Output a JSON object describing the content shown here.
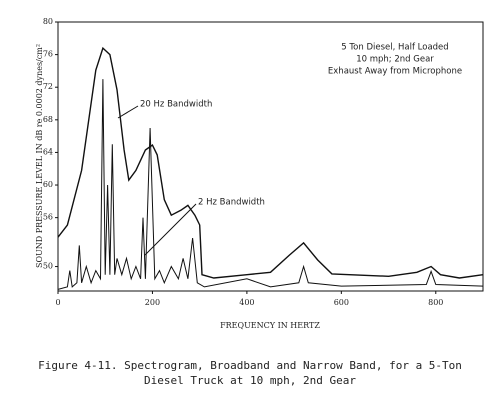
{
  "chart_data": {
    "type": "line",
    "title": "Figure 4-11.  Spectrogram, Broadband and Narrow Band, for a 5-Ton",
    "subtitle": "Diesel Truck at 10 mph, 2nd Gear",
    "x_label": "FREQUENCY IN HERTZ",
    "y_label": "SOUND PRESSURE LEVEL IN dB re 0.0002 dynes/cm²",
    "annotations": [
      "5 Ton Diesel, Half Loaded",
      "10 mph; 2nd Gear",
      "Exhaust Away from Microphone"
    ],
    "xlim": [
      0,
      900
    ],
    "xticks": [
      0,
      200,
      400,
      600,
      800
    ],
    "ylim": [
      47,
      80
    ],
    "yticks": [
      50,
      56,
      60,
      64,
      68,
      72,
      76,
      80
    ],
    "series": [
      {
        "name": "20 Hz Bandwidth",
        "color": "#111",
        "x": [
          0,
          20,
          50,
          80,
          95,
          110,
          125,
          140,
          150,
          165,
          185,
          200,
          210,
          225,
          240,
          260,
          275,
          290,
          300,
          305,
          330,
          400,
          450,
          490,
          520,
          550,
          580,
          700,
          760,
          790,
          810,
          850,
          900
        ],
        "values": [
          53.6,
          55.1,
          61.8,
          74.1,
          76.8,
          76,
          71.7,
          64.3,
          60.6,
          61.8,
          64.3,
          64.9,
          63.7,
          58.2,
          56.3,
          56.9,
          57.5,
          56.3,
          55.1,
          49,
          48.6,
          49,
          49.3,
          51.4,
          52.9,
          50.8,
          49.1,
          48.8,
          49.3,
          50,
          49,
          48.6,
          49
        ]
      },
      {
        "name": "2 Hz Bandwidth",
        "color": "#111",
        "x": [
          0,
          20,
          25,
          30,
          40,
          45,
          50,
          60,
          70,
          80,
          90,
          95,
          100,
          105,
          110,
          115,
          120,
          125,
          135,
          145,
          155,
          165,
          175,
          180,
          185,
          195,
          205,
          215,
          225,
          240,
          255,
          265,
          275,
          285,
          295,
          310,
          400,
          450,
          510,
          520,
          530,
          600,
          780,
          790,
          800,
          900
        ],
        "values": [
          47.2,
          47.5,
          49.5,
          47.5,
          48,
          52.6,
          48,
          50,
          48,
          49.5,
          48.5,
          73,
          49,
          60,
          49,
          65,
          49,
          51,
          49,
          51,
          48.5,
          50,
          48.5,
          56,
          48.5,
          67,
          48.5,
          49.5,
          48,
          50,
          48.5,
          51,
          48.5,
          53.5,
          48,
          47.5,
          48.5,
          47.5,
          48,
          50,
          48,
          47.6,
          47.8,
          49.4,
          47.8,
          47.6
        ]
      }
    ]
  }
}
